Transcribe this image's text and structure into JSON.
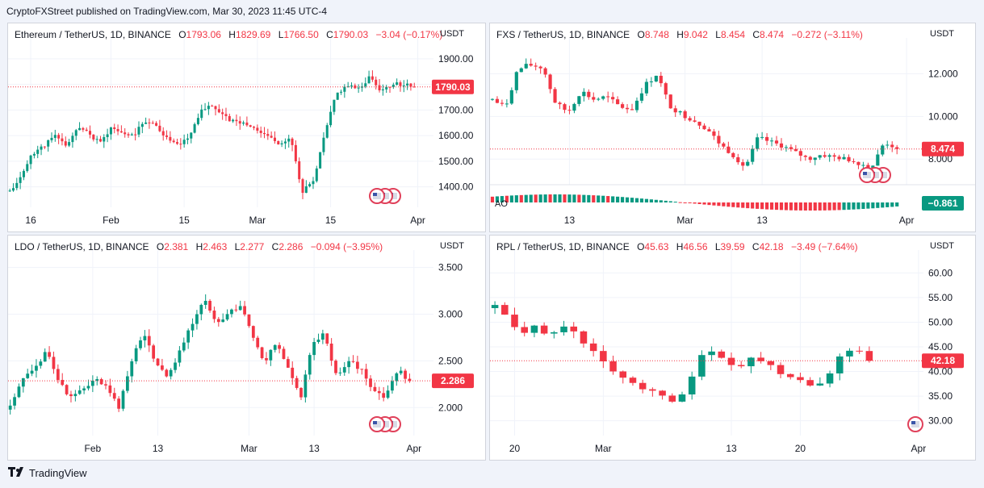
{
  "published_line": "CryptoFXStreet published on TradingView.com, Mar 30, 2023 11:45 UTC-4",
  "footer_brand": "TradingView",
  "colors": {
    "up": "#089981",
    "down": "#f23645",
    "grid": "#f0f3fa",
    "text": "#131722"
  },
  "panels": [
    {
      "id": "eth",
      "symbol": "Ethereum / TetherUS, 1D, BINANCE",
      "open": "1793.06",
      "high": "1829.69",
      "low": "1766.50",
      "close": "1790.03",
      "change": "−3.04 (−0.17%)",
      "unit": "USDT",
      "price_label": "1790.03",
      "chart_data": {
        "type": "candlestick",
        "ylim": [
          1320,
          1950
        ],
        "y_ticks": [
          {
            "v": 1900,
            "t": "1900.00"
          },
          {
            "v": 1800,
            "t": "1800.00"
          },
          {
            "v": 1700,
            "t": "1700.00"
          },
          {
            "v": 1600,
            "t": "1600.00"
          },
          {
            "v": 1500,
            "t": "1500.00"
          },
          {
            "v": 1400,
            "t": "1400.00"
          }
        ],
        "x_ticks": [
          {
            "i": 6,
            "t": "16"
          },
          {
            "i": 29,
            "t": "Feb"
          },
          {
            "i": 50,
            "t": "15"
          },
          {
            "i": 71,
            "t": "Mar"
          },
          {
            "i": 92,
            "t": "15"
          },
          {
            "i": 117,
            "t": "Apr"
          }
        ],
        "last": 1790.03,
        "n_slots": 122,
        "base": 1380,
        "keys": [
          1380,
          1440,
          1530,
          1560,
          1600,
          1560,
          1630,
          1610,
          1570,
          1630,
          1610,
          1600,
          1660,
          1640,
          1590,
          1560,
          1600,
          1700,
          1720,
          1680,
          1650,
          1650,
          1620,
          1600,
          1570,
          1590,
          1380,
          1420,
          1600,
          1760,
          1800,
          1780,
          1830,
          1780,
          1800,
          1800,
          1790
        ],
        "seed": 11,
        "vol": 0.012
      }
    },
    {
      "id": "fxs",
      "symbol": "FXS / TetherUS, 1D, BINANCE",
      "open": "8.748",
      "high": "9.042",
      "low": "8.454",
      "close": "8.474",
      "change": "−0.272 (−3.11%)",
      "unit": "USDT",
      "price_label": "8.474",
      "ao_label": "AO",
      "ao_value": "−0.861",
      "chart_data": {
        "type": "candlestick",
        "ylim": [
          6.8,
          13.3
        ],
        "y_ticks": [
          {
            "v": 12,
            "t": "12.000"
          },
          {
            "v": 10,
            "t": "10.000"
          },
          {
            "v": 8,
            "t": "8.000"
          }
        ],
        "x_ticks": [
          {
            "i": 16,
            "t": "13"
          },
          {
            "i": 40,
            "t": "Mar"
          },
          {
            "i": 56,
            "t": "13"
          },
          {
            "i": 86,
            "t": "Apr"
          }
        ],
        "last": 8.474,
        "n_slots": 90,
        "base": 10.5,
        "keys": [
          10.8,
          10.4,
          12.2,
          12.4,
          12.3,
          10.6,
          10.2,
          11.2,
          10.8,
          10.9,
          10.5,
          10.3,
          11.4,
          12.0,
          10.5,
          10.1,
          9.8,
          9.4,
          8.7,
          8.2,
          7.6,
          9.0,
          8.8,
          8.6,
          8.3,
          8.0,
          8.2,
          8.1,
          8.0,
          7.8,
          7.6,
          8.8,
          8.5
        ],
        "seed": 7,
        "vol": 0.03
      }
    },
    {
      "id": "ldo",
      "symbol": "LDO / TetherUS, 1D, BINANCE",
      "open": "2.381",
      "high": "2.463",
      "low": "2.277",
      "close": "2.286",
      "change": "−0.094 (−3.95%)",
      "unit": "USDT",
      "price_label": "2.286",
      "chart_data": {
        "type": "candlestick",
        "ylim": [
          1.7,
          3.6
        ],
        "y_ticks": [
          {
            "v": 3.5,
            "t": "3.500"
          },
          {
            "v": 3.0,
            "t": "3.000"
          },
          {
            "v": 2.5,
            "t": "2.500"
          },
          {
            "v": 2.0,
            "t": "2.000"
          }
        ],
        "x_ticks": [
          {
            "i": 19,
            "t": "Feb"
          },
          {
            "i": 34,
            "t": "13"
          },
          {
            "i": 55,
            "t": "Mar"
          },
          {
            "i": 70,
            "t": "13"
          },
          {
            "i": 93,
            "t": "Apr"
          }
        ],
        "last": 2.286,
        "n_slots": 98,
        "base": 2.0,
        "keys": [
          2.0,
          2.3,
          2.4,
          2.6,
          2.3,
          2.1,
          2.2,
          2.3,
          2.2,
          2.0,
          2.5,
          2.8,
          2.5,
          2.3,
          2.6,
          2.9,
          3.2,
          2.9,
          3.0,
          3.1,
          2.8,
          2.5,
          2.7,
          2.4,
          2.1,
          2.7,
          2.8,
          2.3,
          2.5,
          2.4,
          2.2,
          2.1,
          2.4,
          2.286
        ],
        "seed": 23,
        "vol": 0.03
      }
    },
    {
      "id": "rpl",
      "symbol": "RPL / TetherUS, 1D, BINANCE",
      "open": "45.63",
      "high": "46.56",
      "low": "39.59",
      "close": "42.18",
      "change": "−3.49 (−7.64%)",
      "unit": "USDT",
      "price_label": "42.18",
      "chart_data": {
        "type": "candlestick",
        "ylim": [
          27,
          63
        ],
        "y_ticks": [
          {
            "v": 60,
            "t": "60.00"
          },
          {
            "v": 55,
            "t": "55.00"
          },
          {
            "v": 50,
            "t": "50.00"
          },
          {
            "v": 45,
            "t": "45.00"
          },
          {
            "v": 40,
            "t": "40.00"
          },
          {
            "v": 35,
            "t": "35.00"
          },
          {
            "v": 30,
            "t": "30.00"
          }
        ],
        "x_ticks": [
          {
            "i": 2,
            "t": "20"
          },
          {
            "i": 11,
            "t": "Mar"
          },
          {
            "i": 24,
            "t": "13"
          },
          {
            "i": 31,
            "t": "20"
          },
          {
            "i": 43,
            "t": "Apr"
          }
        ],
        "last": 42.18,
        "n_slots": 44,
        "base": 52,
        "keys": [
          53,
          51,
          48,
          49,
          47,
          49,
          48,
          45,
          43,
          40,
          39,
          37,
          36,
          35,
          33,
          38,
          43,
          44,
          42,
          41,
          43,
          42,
          40,
          39,
          38,
          37,
          40,
          44,
          45,
          42.18
        ],
        "seed": 5,
        "vol": 0.03
      }
    }
  ]
}
